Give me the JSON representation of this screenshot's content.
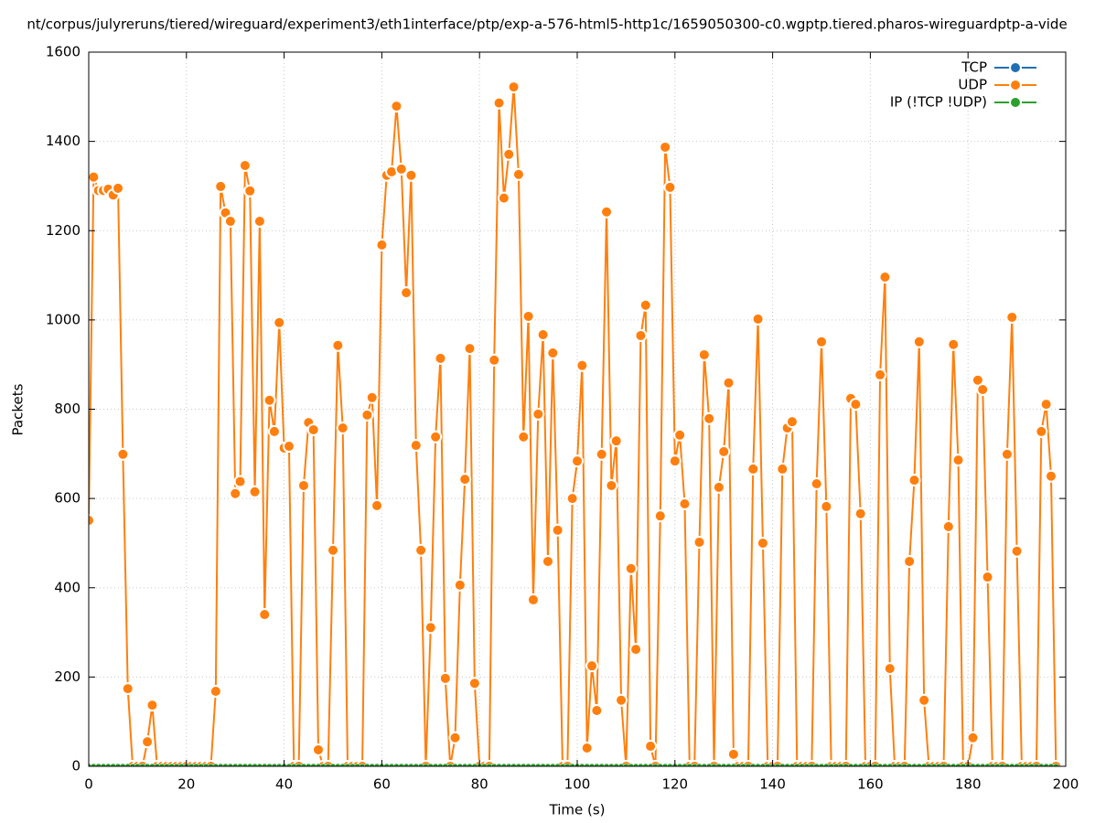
{
  "chart_data": {
    "type": "line",
    "title": "nt/corpus/julyreruns/tiered/wireguard/experiment3/eth1interface/ptp/exp-a-576-html5-http1c/1659050300-c0.wgptp.tiered.pharos-wireguardptp-a-vide",
    "x_label": "Time (s)",
    "y_label": "Packets",
    "xlim": [
      0,
      200
    ],
    "xticks": [
      0,
      20,
      40,
      60,
      80,
      100,
      120,
      140,
      160,
      180,
      200
    ],
    "ylim": [
      0,
      1600
    ],
    "yticks": [
      0,
      200,
      400,
      600,
      800,
      1000,
      1200,
      1400,
      1600
    ],
    "grid": true,
    "legend": "top-right",
    "x": [
      0,
      1,
      2,
      3,
      4,
      5,
      6,
      7,
      8,
      9,
      10,
      11,
      12,
      13,
      14,
      15,
      16,
      17,
      18,
      19,
      20,
      21,
      22,
      23,
      24,
      25,
      26,
      27,
      28,
      29,
      30,
      31,
      32,
      33,
      34,
      35,
      36,
      37,
      38,
      39,
      40,
      41,
      42,
      43,
      44,
      45,
      46,
      47,
      48,
      49,
      50,
      51,
      52,
      53,
      54,
      55,
      56,
      57,
      58,
      59,
      60,
      61,
      62,
      63,
      64,
      65,
      66,
      67,
      68,
      69,
      70,
      71,
      72,
      73,
      74,
      75,
      76,
      77,
      78,
      79,
      80,
      81,
      82,
      83,
      84,
      85,
      86,
      87,
      88,
      89,
      90,
      91,
      92,
      93,
      94,
      95,
      96,
      97,
      98,
      99,
      100,
      101,
      102,
      103,
      104,
      105,
      106,
      107,
      108,
      109,
      110,
      111,
      112,
      113,
      114,
      115,
      116,
      117,
      118,
      119,
      120,
      121,
      122,
      123,
      124,
      125,
      126,
      127,
      128,
      129,
      130,
      131,
      132,
      133,
      134,
      135,
      136,
      137,
      138,
      139,
      140,
      141,
      142,
      143,
      144,
      145,
      146,
      147,
      148,
      149,
      150,
      151,
      152,
      153,
      154,
      155,
      156,
      157,
      158,
      159,
      160,
      161,
      162,
      163,
      164,
      165,
      166,
      167,
      168,
      169,
      170,
      171,
      172,
      173,
      174,
      175,
      176,
      177,
      178,
      179,
      180,
      181,
      182,
      183,
      184,
      185,
      186,
      187,
      188,
      189,
      190,
      191,
      192,
      193,
      194,
      195,
      196,
      197,
      198
    ],
    "series": [
      {
        "name": "TCP",
        "color": "#1f6fb4",
        "marker_size": 3,
        "values": [
          0,
          0,
          0,
          0,
          0,
          0,
          0,
          0,
          0,
          0,
          0,
          0,
          0,
          0,
          0,
          0,
          0,
          0,
          0,
          0,
          0,
          0,
          0,
          0,
          0,
          0,
          0,
          0,
          0,
          0,
          0,
          0,
          0,
          0,
          0,
          0,
          0,
          0,
          0,
          0,
          0,
          0,
          0,
          0,
          0,
          0,
          0,
          0,
          0,
          0,
          0,
          0,
          0,
          0,
          0,
          0,
          0,
          0,
          0,
          0,
          0,
          0,
          0,
          0,
          0,
          0,
          0,
          0,
          0,
          0,
          0,
          0,
          0,
          0,
          0,
          0,
          0,
          0,
          0,
          0,
          0,
          0,
          0,
          0,
          0,
          0,
          0,
          0,
          0,
          0,
          0,
          0,
          0,
          0,
          0,
          0,
          0,
          0,
          0,
          0,
          0,
          0,
          0,
          0,
          0,
          0,
          0,
          0,
          0,
          0,
          0,
          0,
          0,
          0,
          0,
          0,
          0,
          0,
          0,
          0,
          0,
          0,
          0,
          0,
          0,
          0,
          0,
          0,
          0,
          0,
          0,
          0,
          0,
          0,
          0,
          0,
          0,
          0,
          0,
          0,
          0,
          0,
          0,
          0,
          0,
          0,
          0,
          0,
          0,
          0,
          0,
          0,
          0,
          0,
          0,
          0,
          0,
          0,
          0,
          0,
          0,
          0,
          0,
          0,
          0,
          0,
          0,
          0,
          0,
          0,
          0,
          0,
          0,
          0,
          0,
          0,
          0,
          0,
          0,
          0,
          0,
          0,
          0,
          0,
          0,
          0,
          0,
          0,
          0,
          0,
          0,
          0,
          0,
          0,
          0,
          0,
          0,
          0,
          0
        ]
      },
      {
        "name": "UDP",
        "color": "#ff7f0e",
        "marker_size": 6,
        "values": [
          551,
          1320,
          1290,
          1290,
          1293,
          1280,
          1295,
          699,
          174,
          0,
          0,
          0,
          55,
          137,
          0,
          0,
          0,
          0,
          0,
          0,
          0,
          0,
          0,
          0,
          0,
          0,
          168,
          1299,
          1240,
          1221,
          611,
          638,
          1346,
          1289,
          615,
          1221,
          340,
          820,
          750,
          994,
          713,
          717,
          0,
          0,
          629,
          770,
          754,
          37,
          0,
          0,
          484,
          943,
          758,
          0,
          0,
          0,
          0,
          787,
          826,
          584,
          1168,
          1324,
          1332,
          1479,
          1338,
          1061,
          1324,
          719,
          484,
          0,
          311,
          738,
          914,
          197,
          0,
          64,
          406,
          643,
          936,
          186,
          0,
          0,
          0,
          910,
          1486,
          1273,
          1371,
          1522,
          1326,
          738,
          1008,
          373,
          789,
          967,
          459,
          926,
          529,
          0,
          0,
          600,
          684,
          898,
          41,
          225,
          125,
          699,
          1242,
          629,
          729,
          148,
          0,
          443,
          262,
          965,
          1033,
          45,
          0,
          561,
          1387,
          1297,
          684,
          742,
          588,
          0,
          0,
          502,
          922,
          779,
          0,
          625,
          705,
          859,
          27,
          0,
          0,
          0,
          666,
          1002,
          500,
          0,
          0,
          0,
          666,
          758,
          772,
          0,
          0,
          0,
          0,
          633,
          951,
          582,
          0,
          0,
          0,
          0,
          824,
          811,
          566,
          0,
          0,
          0,
          877,
          1096,
          219,
          0,
          0,
          0,
          459,
          641,
          951,
          148,
          0,
          0,
          0,
          0,
          537,
          945,
          686,
          0,
          0,
          64,
          865,
          844,
          424,
          0,
          0,
          0,
          699,
          1006,
          482,
          0,
          0,
          0,
          0,
          750,
          811,
          650,
          0
        ]
      },
      {
        "name": "IP (!TCP  !UDP)",
        "color": "#2ca02c",
        "marker_size": 3,
        "values": [
          0,
          0,
          0,
          0,
          0,
          0,
          0,
          0,
          0,
          0,
          0,
          0,
          0,
          0,
          0,
          0,
          0,
          0,
          0,
          0,
          0,
          0,
          0,
          0,
          0,
          0,
          0,
          0,
          0,
          0,
          0,
          0,
          0,
          0,
          0,
          0,
          0,
          0,
          0,
          0,
          0,
          0,
          0,
          0,
          0,
          0,
          0,
          0,
          0,
          0,
          0,
          0,
          0,
          0,
          0,
          0,
          0,
          0,
          0,
          0,
          0,
          0,
          0,
          0,
          0,
          0,
          0,
          0,
          0,
          0,
          0,
          0,
          0,
          0,
          0,
          0,
          0,
          0,
          0,
          0,
          0,
          0,
          0,
          0,
          0,
          0,
          0,
          0,
          0,
          0,
          0,
          0,
          0,
          0,
          0,
          0,
          0,
          0,
          0,
          0,
          0,
          0,
          0,
          0,
          0,
          0,
          0,
          0,
          0,
          0,
          0,
          0,
          0,
          0,
          0,
          0,
          0,
          0,
          0,
          0,
          0,
          0,
          0,
          0,
          0,
          0,
          0,
          0,
          0,
          0,
          0,
          0,
          0,
          0,
          0,
          0,
          0,
          0,
          0,
          0,
          0,
          0,
          0,
          0,
          0,
          0,
          0,
          0,
          0,
          0,
          0,
          0,
          0,
          0,
          0,
          0,
          0,
          0,
          0,
          0,
          0,
          0,
          0,
          0,
          0,
          0,
          0,
          0,
          0,
          0,
          0,
          0,
          0,
          0,
          0,
          0,
          0,
          0,
          0,
          0,
          0,
          0,
          0,
          0,
          0,
          0,
          0,
          0,
          0,
          0,
          0,
          0,
          0,
          0,
          0,
          0,
          0,
          0,
          0
        ]
      }
    ]
  }
}
